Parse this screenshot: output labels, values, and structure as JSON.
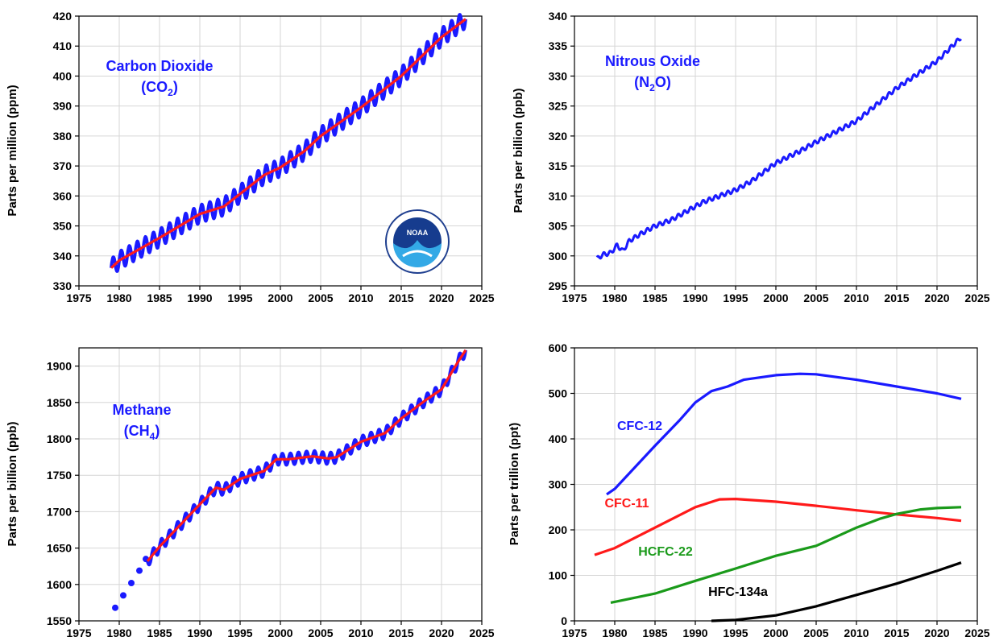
{
  "chart_data": [
    {
      "id": "co2",
      "type": "line",
      "title": "Carbon Dioxide",
      "formula_base": "(CO",
      "formula_sub": "2",
      "formula_end": ")",
      "ylabel": "Parts per million (ppm)",
      "xlim": [
        1975,
        2025
      ],
      "ylim": [
        330,
        420
      ],
      "xticks": [
        1975,
        1980,
        1985,
        1990,
        1995,
        2000,
        2005,
        2010,
        2015,
        2020,
        2025
      ],
      "yticks": [
        330,
        340,
        350,
        360,
        370,
        380,
        390,
        400,
        410,
        420
      ],
      "grid": true,
      "logo": "noaa-logo",
      "monthly_color": "#1a1aff",
      "trend_color": "#ff1a1a",
      "seasonal_amplitude": 3,
      "series": [
        {
          "role": "monthly_mean",
          "style": "oscillating",
          "x": [
            1979,
            1980,
            1985,
            1990,
            1993,
            1998,
            2000,
            2003,
            2005,
            2010,
            2015,
            2020,
            2023
          ],
          "y": [
            336,
            338.5,
            346,
            354,
            356.5,
            367,
            369.5,
            375,
            380,
            389.5,
            400,
            413,
            419
          ]
        },
        {
          "role": "trend",
          "x": [
            1979,
            1980,
            1985,
            1990,
            1993,
            1998,
            2000,
            2003,
            2005,
            2010,
            2015,
            2020,
            2023
          ],
          "y": [
            336,
            338.5,
            346,
            354,
            356.5,
            367,
            369.5,
            375,
            380,
            389.5,
            400,
            413,
            419
          ]
        }
      ]
    },
    {
      "id": "n2o",
      "type": "line",
      "title": "Nitrous Oxide",
      "formula_base": "(N",
      "formula_sub": "2",
      "formula_end": "O)",
      "ylabel": "Parts per billion (ppb)",
      "xlim": [
        1975,
        2025
      ],
      "ylim": [
        295,
        340
      ],
      "xticks": [
        1975,
        1980,
        1985,
        1990,
        1995,
        2000,
        2005,
        2010,
        2015,
        2020,
        2025
      ],
      "yticks": [
        295,
        300,
        305,
        310,
        315,
        320,
        325,
        330,
        335,
        340
      ],
      "grid": true,
      "line_color": "#1a1aff",
      "series": [
        {
          "role": "monthly",
          "x": [
            1977.8,
            1978.5,
            1979.5,
            1980.3,
            1981,
            1981.8,
            1983,
            1985,
            1987,
            1989,
            1991,
            1993,
            1995,
            1997,
            2000,
            2003,
            2005,
            2010,
            2015,
            2020,
            2023
          ],
          "y": [
            299.5,
            300.2,
            300.5,
            301.8,
            300.8,
            302.5,
            303.5,
            305,
            306,
            307.5,
            309,
            310,
            311,
            312.5,
            315.5,
            317.5,
            319,
            322.5,
            328,
            332.5,
            336.5
          ]
        }
      ]
    },
    {
      "id": "ch4",
      "type": "line",
      "title": "Methane",
      "formula_base": "(CH",
      "formula_sub": "4",
      "formula_end": ")",
      "ylabel": "Parts per billion (ppb)",
      "xlim": [
        1975,
        2025
      ],
      "ylim": [
        1550,
        1925
      ],
      "xticks": [
        1975,
        1980,
        1985,
        1990,
        1995,
        2000,
        2005,
        2010,
        2015,
        2020,
        2025
      ],
      "yticks": [
        1550,
        1600,
        1650,
        1700,
        1750,
        1800,
        1850,
        1900
      ],
      "grid": true,
      "monthly_color": "#1a1aff",
      "trend_color": "#ff1a1a",
      "seasonal_amplitude": 8,
      "series": [
        {
          "role": "early_points",
          "x": [
            1979.5,
            1980.5,
            1981.5,
            1982.5,
            1983.3
          ],
          "y": [
            1568,
            1585,
            1602,
            1619,
            1635
          ]
        },
        {
          "role": "monthly_mean",
          "style": "oscillating",
          "x": [
            1983.5,
            1985,
            1990,
            1992,
            1993,
            1995,
            1998,
            1999.5,
            2001,
            2004,
            2006,
            2007,
            2010,
            2013,
            2015,
            2018,
            2020,
            2022,
            2023
          ],
          "y": [
            1632,
            1652,
            1710,
            1733,
            1730,
            1745,
            1756,
            1772,
            1772,
            1776,
            1773,
            1775,
            1796,
            1808,
            1828,
            1853,
            1868,
            1905,
            1922
          ]
        },
        {
          "role": "trend",
          "x": [
            1983.5,
            1985,
            1990,
            1992,
            1993,
            1995,
            1998,
            1999.5,
            2001,
            2004,
            2006,
            2007,
            2010,
            2013,
            2015,
            2018,
            2020,
            2022,
            2023
          ],
          "y": [
            1632,
            1652,
            1710,
            1733,
            1730,
            1745,
            1756,
            1772,
            1772,
            1776,
            1773,
            1775,
            1796,
            1808,
            1828,
            1853,
            1868,
            1905,
            1922
          ]
        }
      ]
    },
    {
      "id": "halocarbons",
      "type": "line",
      "ylabel": "Parts per trillion (ppt)",
      "xlim": [
        1975,
        2025
      ],
      "ylim": [
        0,
        600
      ],
      "xticks": [
        1975,
        1980,
        1985,
        1990,
        1995,
        2000,
        2005,
        2010,
        2015,
        2020,
        2025
      ],
      "yticks": [
        0,
        100,
        200,
        300,
        400,
        500,
        600
      ],
      "grid": true,
      "series": [
        {
          "name": "CFC-12",
          "color": "#1a1aff",
          "x": [
            1979,
            1980,
            1985,
            1988,
            1990,
            1992,
            1994,
            1996,
            2000,
            2003,
            2005,
            2010,
            2015,
            2020,
            2023
          ],
          "y": [
            278,
            290,
            385,
            440,
            480,
            505,
            515,
            530,
            540,
            543,
            542,
            530,
            515,
            500,
            488
          ]
        },
        {
          "name": "CFC-11",
          "color": "#ff1a1a",
          "x": [
            1977.5,
            1980,
            1985,
            1990,
            1993,
            1995,
            2000,
            2005,
            2010,
            2015,
            2020,
            2023
          ],
          "y": [
            145,
            160,
            205,
            250,
            267,
            268,
            262,
            253,
            243,
            234,
            226,
            220
          ]
        },
        {
          "name": "HCFC-22",
          "color": "#1a9a1a",
          "x": [
            1979.5,
            1985,
            1990,
            1995,
            2000,
            2005,
            2010,
            2013,
            2015,
            2018,
            2020,
            2023
          ],
          "y": [
            40,
            60,
            88,
            115,
            143,
            165,
            205,
            225,
            235,
            245,
            248,
            250
          ]
        },
        {
          "name": "HFC-134a",
          "color": "#000000",
          "x": [
            1992,
            1995,
            2000,
            2005,
            2010,
            2015,
            2020,
            2023
          ],
          "y": [
            0,
            2,
            12,
            32,
            57,
            82,
            110,
            128
          ]
        }
      ]
    }
  ]
}
